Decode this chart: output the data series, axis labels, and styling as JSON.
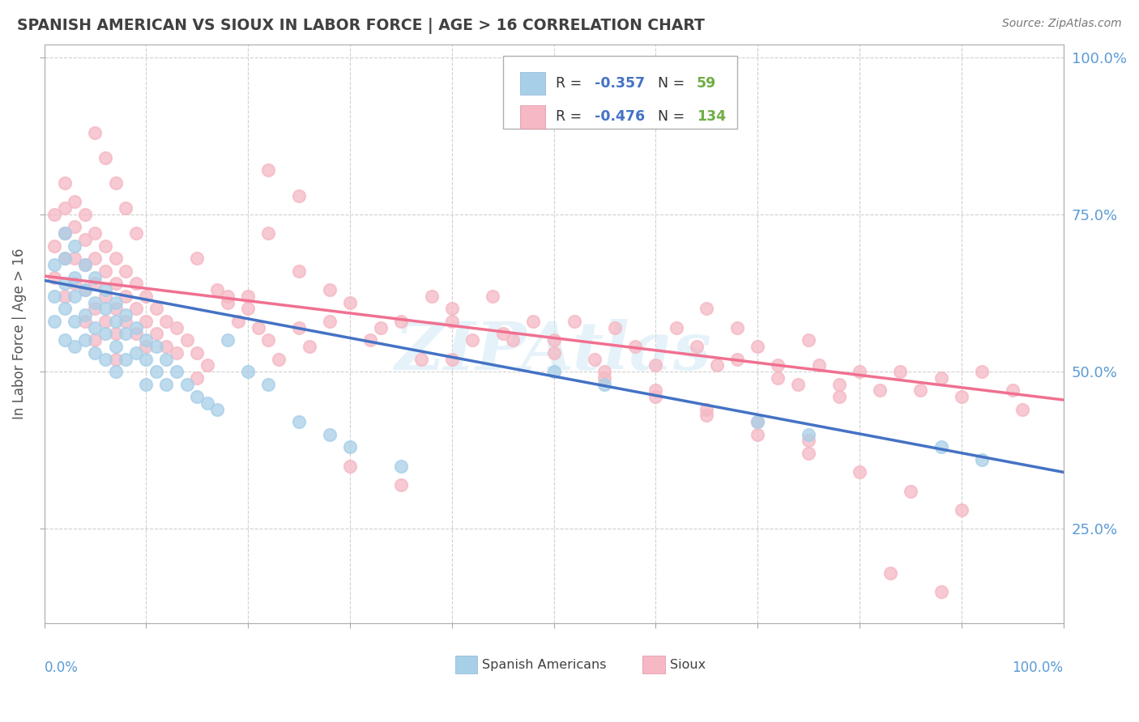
{
  "title": "SPANISH AMERICAN VS SIOUX IN LABOR FORCE | AGE > 16 CORRELATION CHART",
  "source_text": "Source: ZipAtlas.com",
  "ylabel": "In Labor Force | Age > 16",
  "right_ytick_labels": [
    "25.0%",
    "50.0%",
    "75.0%",
    "100.0%"
  ],
  "right_ytick_vals": [
    0.25,
    0.5,
    0.75,
    1.0
  ],
  "watermark": "ZIPAtlas",
  "blue_color": "#a8cfe8",
  "pink_color": "#f5b8c4",
  "blue_line_color": "#4472c4",
  "pink_line_color": "#f07090",
  "legend_R_color": "#4472c4",
  "legend_N_color": "#70ad47",
  "background_color": "#ffffff",
  "grid_color": "#d0d0d0",
  "blue_scatter_x": [
    0.01,
    0.01,
    0.01,
    0.02,
    0.02,
    0.02,
    0.02,
    0.02,
    0.03,
    0.03,
    0.03,
    0.03,
    0.03,
    0.04,
    0.04,
    0.04,
    0.04,
    0.05,
    0.05,
    0.05,
    0.05,
    0.06,
    0.06,
    0.06,
    0.06,
    0.07,
    0.07,
    0.07,
    0.07,
    0.08,
    0.08,
    0.08,
    0.09,
    0.09,
    0.1,
    0.1,
    0.1,
    0.11,
    0.11,
    0.12,
    0.12,
    0.13,
    0.14,
    0.15,
    0.16,
    0.17,
    0.18,
    0.2,
    0.22,
    0.25,
    0.28,
    0.3,
    0.35,
    0.5,
    0.55,
    0.7,
    0.75,
    0.88,
    0.92
  ],
  "blue_scatter_y": [
    0.67,
    0.62,
    0.58,
    0.72,
    0.68,
    0.64,
    0.6,
    0.55,
    0.7,
    0.65,
    0.62,
    0.58,
    0.54,
    0.67,
    0.63,
    0.59,
    0.55,
    0.65,
    0.61,
    0.57,
    0.53,
    0.63,
    0.6,
    0.56,
    0.52,
    0.61,
    0.58,
    0.54,
    0.5,
    0.59,
    0.56,
    0.52,
    0.57,
    0.53,
    0.55,
    0.52,
    0.48,
    0.54,
    0.5,
    0.52,
    0.48,
    0.5,
    0.48,
    0.46,
    0.45,
    0.44,
    0.55,
    0.5,
    0.48,
    0.42,
    0.4,
    0.38,
    0.35,
    0.5,
    0.48,
    0.42,
    0.4,
    0.38,
    0.36
  ],
  "pink_scatter_x": [
    0.01,
    0.01,
    0.01,
    0.02,
    0.02,
    0.02,
    0.02,
    0.02,
    0.03,
    0.03,
    0.03,
    0.03,
    0.04,
    0.04,
    0.04,
    0.04,
    0.04,
    0.05,
    0.05,
    0.05,
    0.05,
    0.05,
    0.06,
    0.06,
    0.06,
    0.06,
    0.07,
    0.07,
    0.07,
    0.07,
    0.07,
    0.08,
    0.08,
    0.08,
    0.09,
    0.09,
    0.09,
    0.1,
    0.1,
    0.1,
    0.11,
    0.11,
    0.12,
    0.12,
    0.13,
    0.13,
    0.14,
    0.15,
    0.15,
    0.16,
    0.17,
    0.18,
    0.19,
    0.2,
    0.21,
    0.22,
    0.23,
    0.25,
    0.26,
    0.28,
    0.3,
    0.32,
    0.35,
    0.37,
    0.38,
    0.4,
    0.42,
    0.44,
    0.46,
    0.48,
    0.5,
    0.52,
    0.54,
    0.56,
    0.58,
    0.6,
    0.62,
    0.64,
    0.65,
    0.66,
    0.68,
    0.7,
    0.72,
    0.74,
    0.75,
    0.76,
    0.78,
    0.8,
    0.82,
    0.84,
    0.86,
    0.88,
    0.9,
    0.92,
    0.95,
    0.96,
    0.28,
    0.33,
    0.15,
    0.18,
    0.22,
    0.4,
    0.45,
    0.5,
    0.55,
    0.6,
    0.65,
    0.7,
    0.75,
    0.3,
    0.35,
    0.4,
    0.22,
    0.25,
    0.55,
    0.6,
    0.65,
    0.7,
    0.75,
    0.8,
    0.85,
    0.9,
    0.05,
    0.06,
    0.07,
    0.08,
    0.09,
    0.2,
    0.25,
    0.68,
    0.72,
    0.78,
    0.83,
    0.88
  ],
  "pink_scatter_y": [
    0.75,
    0.7,
    0.65,
    0.8,
    0.76,
    0.72,
    0.68,
    0.62,
    0.77,
    0.73,
    0.68,
    0.64,
    0.75,
    0.71,
    0.67,
    0.63,
    0.58,
    0.72,
    0.68,
    0.64,
    0.6,
    0.55,
    0.7,
    0.66,
    0.62,
    0.58,
    0.68,
    0.64,
    0.6,
    0.56,
    0.52,
    0.66,
    0.62,
    0.58,
    0.64,
    0.6,
    0.56,
    0.62,
    0.58,
    0.54,
    0.6,
    0.56,
    0.58,
    0.54,
    0.57,
    0.53,
    0.55,
    0.53,
    0.49,
    0.51,
    0.63,
    0.61,
    0.58,
    0.6,
    0.57,
    0.55,
    0.52,
    0.57,
    0.54,
    0.58,
    0.61,
    0.55,
    0.58,
    0.52,
    0.62,
    0.58,
    0.55,
    0.62,
    0.55,
    0.58,
    0.55,
    0.58,
    0.52,
    0.57,
    0.54,
    0.51,
    0.57,
    0.54,
    0.6,
    0.51,
    0.57,
    0.54,
    0.51,
    0.48,
    0.55,
    0.51,
    0.48,
    0.5,
    0.47,
    0.5,
    0.47,
    0.49,
    0.46,
    0.5,
    0.47,
    0.44,
    0.63,
    0.57,
    0.68,
    0.62,
    0.72,
    0.6,
    0.56,
    0.53,
    0.5,
    0.47,
    0.44,
    0.42,
    0.39,
    0.35,
    0.32,
    0.52,
    0.82,
    0.78,
    0.49,
    0.46,
    0.43,
    0.4,
    0.37,
    0.34,
    0.31,
    0.28,
    0.88,
    0.84,
    0.8,
    0.76,
    0.72,
    0.62,
    0.66,
    0.52,
    0.49,
    0.46,
    0.18,
    0.15
  ],
  "blue_line_x0": 0.0,
  "blue_line_x1": 1.0,
  "blue_line_y0": 0.645,
  "blue_line_y1": 0.34,
  "pink_line_x0": 0.0,
  "pink_line_x1": 1.0,
  "pink_line_y0": 0.652,
  "pink_line_y1": 0.455,
  "xlim": [
    0.0,
    1.0
  ],
  "ylim": [
    0.1,
    1.02
  ],
  "xtick_vals": [
    0.0,
    0.1,
    0.2,
    0.3,
    0.4,
    0.5,
    0.6,
    0.7,
    0.8,
    0.9,
    1.0
  ],
  "ytick_vals": [
    0.25,
    0.5,
    0.75,
    1.0
  ]
}
